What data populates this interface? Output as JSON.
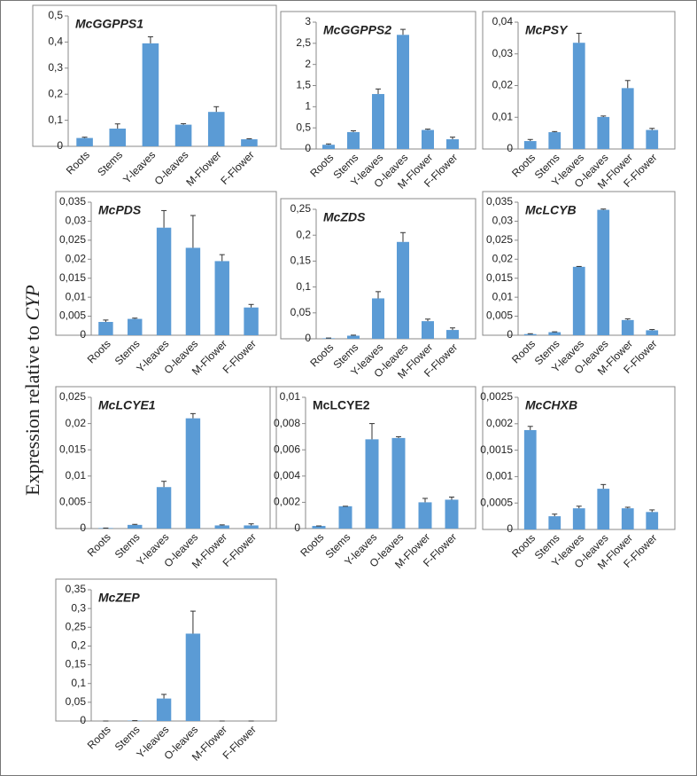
{
  "y_label": {
    "text": "Expression relative to",
    "gene": "CYP"
  },
  "chart_data": [
    {
      "type": "bar",
      "title": "McGGPPS1",
      "title_italic": true,
      "color": "#5b9bd5",
      "categories": [
        "Roots",
        "Stems",
        "Y-leaves",
        "O-leaves",
        "M-Flower",
        "F-Flower"
      ],
      "values": [
        0.032,
        0.068,
        0.395,
        0.083,
        0.132,
        0.027
      ],
      "errors": [
        0.003,
        0.018,
        0.025,
        0.004,
        0.02,
        0.002
      ],
      "ylim": [
        0,
        0.5
      ],
      "yticks": [
        0,
        {
          "value": 0.1,
          "label": "0,1"
        },
        {
          "value": 0.2,
          "label": "0,2"
        },
        {
          "value": 0.3,
          "label": "0,3"
        },
        {
          "value": 0.4,
          "label": "0,4"
        },
        {
          "value": 0.5,
          "label": "0,5"
        }
      ]
    },
    {
      "type": "bar",
      "title": "McGGPPS2",
      "title_italic": true,
      "color": "#5b9bd5",
      "categories": [
        "Roots",
        "Stems",
        "Y-leaves",
        "O-leaves",
        "M-Flower",
        "F-Flower"
      ],
      "values": [
        0.1,
        0.4,
        1.3,
        2.7,
        0.45,
        0.23
      ],
      "errors": [
        0.02,
        0.03,
        0.12,
        0.13,
        0.02,
        0.05
      ],
      "ylim": [
        0,
        3
      ],
      "yticks": [
        0,
        {
          "value": 0.5,
          "label": "0,5"
        },
        1,
        {
          "value": 1.5,
          "label": "1,5"
        },
        2,
        {
          "value": 2.5,
          "label": "2,5"
        },
        3
      ]
    },
    {
      "type": "bar",
      "title": "McPSY",
      "title_italic": true,
      "color": "#5b9bd5",
      "categories": [
        "Roots",
        "Stems",
        "Y-leaves",
        "O-leaves",
        "M-Flower",
        "F-Flower"
      ],
      "values": [
        0.0025,
        0.0053,
        0.0335,
        0.0101,
        0.0192,
        0.006
      ],
      "errors": [
        0.0005,
        0.0002,
        0.003,
        0.0003,
        0.0024,
        0.0005
      ],
      "ylim": [
        0,
        0.04
      ],
      "yticks": [
        0,
        {
          "value": 0.01,
          "label": "0,01"
        },
        {
          "value": 0.02,
          "label": "0,02"
        },
        {
          "value": 0.03,
          "label": "0,03"
        },
        {
          "value": 0.04,
          "label": "0,04"
        }
      ]
    },
    {
      "type": "bar",
      "title": "McPDS",
      "title_italic": true,
      "color": "#5b9bd5",
      "categories": [
        "Roots",
        "Stems",
        "Y-leaves",
        "O-leaves",
        "M-Flower",
        "F-Flower"
      ],
      "values": [
        0.0035,
        0.0043,
        0.0283,
        0.023,
        0.0195,
        0.0073
      ],
      "errors": [
        0.0005,
        0.0002,
        0.0045,
        0.0085,
        0.0017,
        0.0008
      ],
      "ylim": [
        0,
        0.035
      ],
      "yticks": [
        0,
        {
          "value": 0.005,
          "label": "0,005"
        },
        {
          "value": 0.01,
          "label": "0,01"
        },
        {
          "value": 0.015,
          "label": "0,015"
        },
        {
          "value": 0.02,
          "label": "0,02"
        },
        {
          "value": 0.025,
          "label": "0,025"
        },
        {
          "value": 0.03,
          "label": "0,03"
        },
        {
          "value": 0.035,
          "label": "0,035"
        }
      ]
    },
    {
      "type": "bar",
      "title": "McZDS",
      "title_italic": true,
      "color": "#5b9bd5",
      "categories": [
        "Roots",
        "Stems",
        "Y-leaves",
        "O-leaves",
        "M-Flower",
        "F-Flower"
      ],
      "values": [
        0.001,
        0.006,
        0.078,
        0.187,
        0.034,
        0.017
      ],
      "errors": [
        0.0005,
        0.001,
        0.013,
        0.018,
        0.004,
        0.004
      ],
      "ylim": [
        0,
        0.25
      ],
      "yticks": [
        0,
        {
          "value": 0.05,
          "label": "0,05"
        },
        {
          "value": 0.1,
          "label": "0,1"
        },
        {
          "value": 0.15,
          "label": "0,15"
        },
        {
          "value": 0.2,
          "label": "0,2"
        },
        {
          "value": 0.25,
          "label": "0,25"
        }
      ]
    },
    {
      "type": "bar",
      "title": "McLCYB",
      "title_italic": true,
      "color": "#5b9bd5",
      "categories": [
        "Roots",
        "Stems",
        "Y-leaves",
        "O-leaves",
        "M-Flower",
        "F-Flower"
      ],
      "values": [
        0.0003,
        0.0008,
        0.018,
        0.033,
        0.004,
        0.0013
      ],
      "errors": [
        0.0001,
        0.0001,
        0.0001,
        0.0002,
        0.0003,
        0.0002
      ],
      "ylim": [
        0,
        0.035
      ],
      "yticks": [
        0,
        {
          "value": 0.005,
          "label": "0,005"
        },
        {
          "value": 0.01,
          "label": "0,01"
        },
        {
          "value": 0.015,
          "label": "0,015"
        },
        {
          "value": 0.02,
          "label": "0,02"
        },
        {
          "value": 0.025,
          "label": "0,025"
        },
        {
          "value": 0.03,
          "label": "0,03"
        },
        {
          "value": 0.035,
          "label": "0,035"
        }
      ]
    },
    {
      "type": "bar",
      "title": "McLCYE1",
      "title_italic": true,
      "color": "#5b9bd5",
      "categories": [
        "Roots",
        "Stems",
        "Y-leaves",
        "O-leaves",
        "M-Flower",
        "F-Flower"
      ],
      "values": [
        0.0001,
        0.0007,
        0.0079,
        0.021,
        0.0006,
        0.0006
      ],
      "errors": [
        0,
        0.0001,
        0.0011,
        0.0009,
        0.0001,
        0.0003
      ],
      "ylim": [
        0,
        0.025
      ],
      "yticks": [
        0,
        {
          "value": 0.005,
          "label": "0,005"
        },
        {
          "value": 0.01,
          "label": "0,01"
        },
        {
          "value": 0.015,
          "label": "0,015"
        },
        {
          "value": 0.02,
          "label": "0,02"
        },
        {
          "value": 0.025,
          "label": "0,025"
        }
      ]
    },
    {
      "type": "bar",
      "title": "McLCYE2",
      "title_italic": false,
      "color": "#5b9bd5",
      "categories": [
        "Roots",
        "Stems",
        "Y-leaves",
        "O-leaves",
        "M-Flower",
        "F-Flower"
      ],
      "values": [
        0.0002,
        0.0017,
        0.0068,
        0.0069,
        0.002,
        0.0022
      ],
      "errors": [
        0,
        0,
        0.0012,
        0.0001,
        0.0003,
        0.0002
      ],
      "ylim": [
        0,
        0.01
      ],
      "yticks": [
        0,
        {
          "value": 0.002,
          "label": "0,002"
        },
        {
          "value": 0.004,
          "label": "0,004"
        },
        {
          "value": 0.006,
          "label": "0,006"
        },
        {
          "value": 0.008,
          "label": "0,008"
        },
        {
          "value": 0.01,
          "label": "0,01"
        }
      ]
    },
    {
      "type": "bar",
      "title": "McCHXB",
      "title_italic": true,
      "color": "#5b9bd5",
      "categories": [
        "Roots",
        "Stems",
        "Y-leaves",
        "O-leaves",
        "M-Flower",
        "F-Flower"
      ],
      "values": [
        0.00188,
        0.00025,
        0.0004,
        0.00077,
        0.0004,
        0.00033
      ],
      "errors": [
        7e-05,
        4e-05,
        4e-05,
        8e-05,
        2e-05,
        4e-05
      ],
      "ylim": [
        0,
        0.0025
      ],
      "yticks": [
        0,
        {
          "value": 0.0005,
          "label": "0,0005"
        },
        {
          "value": 0.001,
          "label": "0,001"
        },
        {
          "value": 0.0015,
          "label": "0,0015"
        },
        {
          "value": 0.002,
          "label": "0,002"
        },
        {
          "value": 0.0025,
          "label": "0,0025"
        }
      ]
    },
    {
      "type": "bar",
      "title": "McZEP",
      "title_italic": true,
      "color": "#5b9bd5",
      "categories": [
        "Roots",
        "Stems",
        "Y-leaves",
        "O-leaves",
        "M-Flower",
        "F-Flower"
      ],
      "values": [
        0,
        0.001,
        0.06,
        0.233,
        0,
        0
      ],
      "errors": [
        0,
        0,
        0.011,
        0.06,
        0,
        0
      ],
      "ylim": [
        0,
        0.35
      ],
      "yticks": [
        0,
        {
          "value": 0.05,
          "label": "0,05"
        },
        {
          "value": 0.1,
          "label": "0,1"
        },
        {
          "value": 0.15,
          "label": "0,15"
        },
        {
          "value": 0.2,
          "label": "0,2"
        },
        {
          "value": 0.25,
          "label": "0,25"
        },
        {
          "value": 0.3,
          "label": "0,3"
        },
        {
          "value": 0.35,
          "label": "0,35"
        }
      ]
    }
  ]
}
